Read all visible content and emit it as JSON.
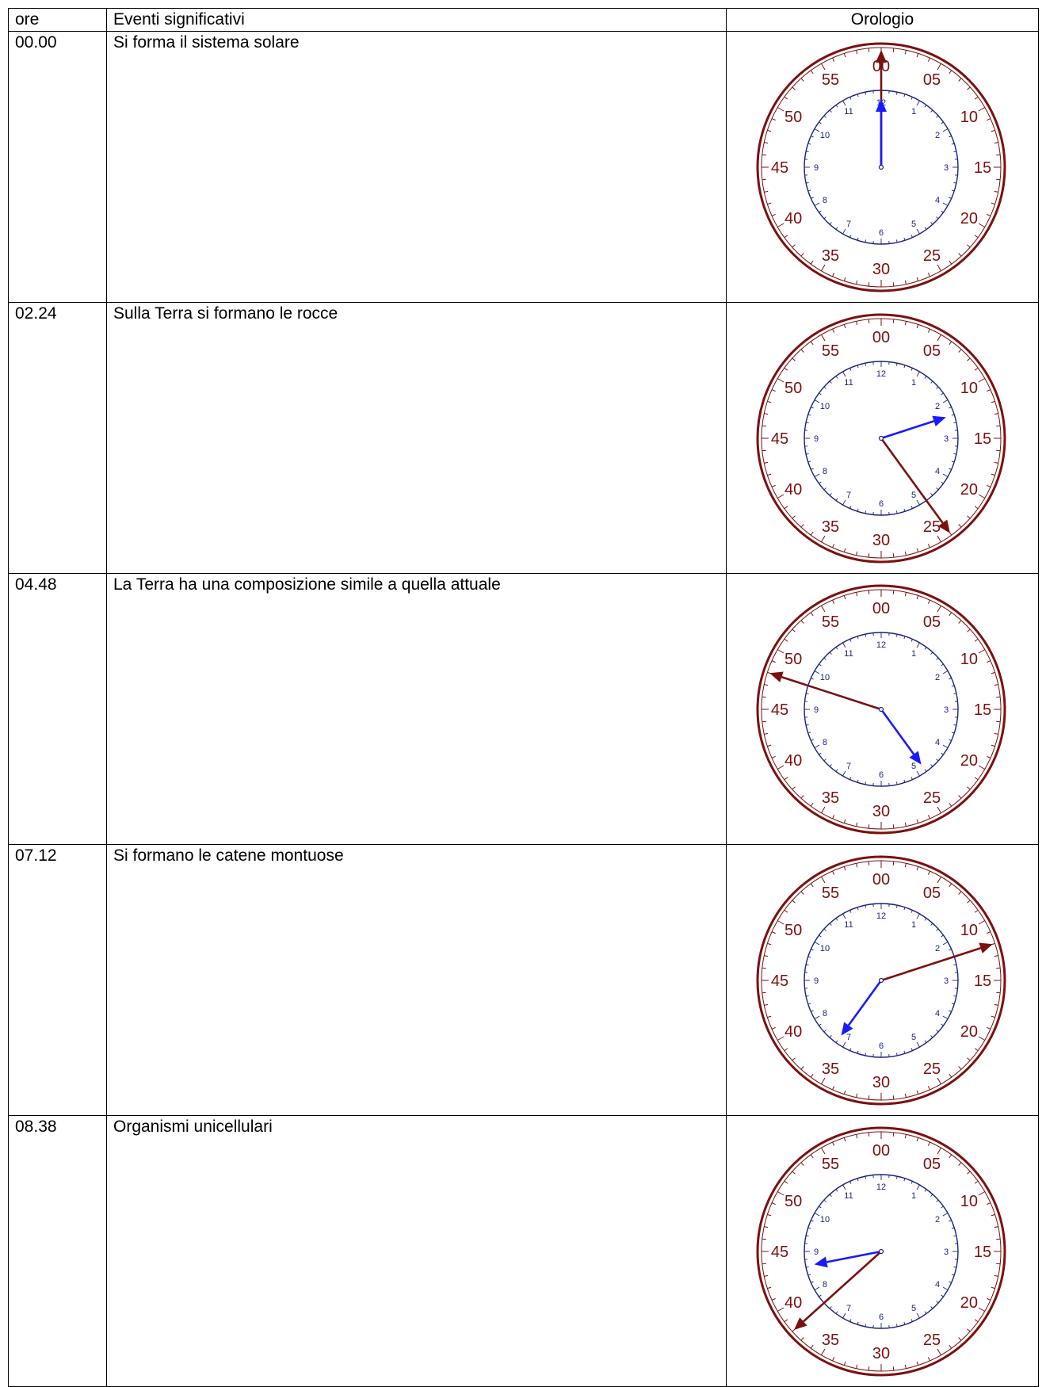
{
  "table": {
    "headers": {
      "time": "ore",
      "event": "Eventi significativi",
      "clock": "Orologio"
    },
    "rows": [
      {
        "time": "00.00",
        "event": "Si forma il sistema solare",
        "clock": {
          "hour": 0,
          "minute": 0
        }
      },
      {
        "time": "02.24",
        "event": "Sulla Terra si formano le rocce",
        "clock": {
          "hour": 2,
          "minute": 24
        }
      },
      {
        "time": "04.48",
        "event": "La Terra ha una composizione simile a quella attuale",
        "clock": {
          "hour": 4,
          "minute": 48
        }
      },
      {
        "time": "07.12",
        "event": "Si formano le catene montuose",
        "clock": {
          "hour": 7,
          "minute": 12
        }
      },
      {
        "time": "08.38",
        "event": "Organismi unicellulari",
        "clock": {
          "hour": 8,
          "minute": 38
        }
      }
    ]
  },
  "clock_face": {
    "minute_labels": [
      "00",
      "05",
      "10",
      "15",
      "20",
      "25",
      "30",
      "35",
      "40",
      "45",
      "50",
      "55"
    ],
    "hour_labels": [
      "12",
      "1",
      "2",
      "3",
      "4",
      "5",
      "6",
      "7",
      "8",
      "9",
      "10",
      "11"
    ],
    "colors": {
      "outer_ring": "#7b1010",
      "inner_ring": "#1a237e",
      "minute_hand": "#7b1010",
      "hour_hand": "#1a1aff",
      "center": "#1a237e"
    }
  }
}
